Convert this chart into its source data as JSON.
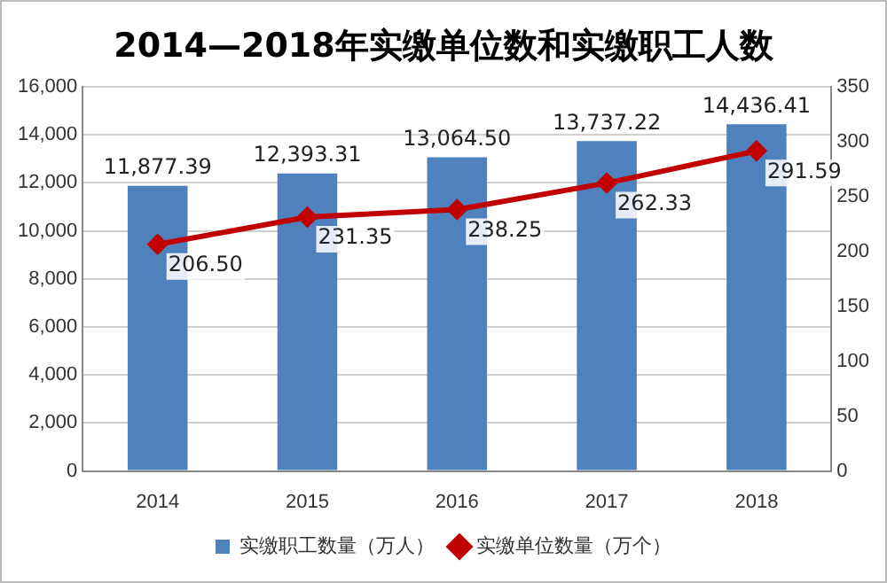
{
  "chart_data": {
    "type": "bar",
    "title": "2014—2018年实缴单位数和实缴职工人数",
    "categories": [
      "2014",
      "2015",
      "2016",
      "2017",
      "2018"
    ],
    "series": [
      {
        "name": "实缴职工数量（万人）",
        "color": "#4f81bd",
        "values": [
          11877.39,
          12393.31,
          13064.5,
          13737.22,
          14436.41
        ],
        "value_labels": [
          "11,877.39",
          "12,393.31",
          "13,064.50",
          "13,737.22",
          "14,436.41"
        ]
      },
      {
        "name": "实缴单位数量（万个）",
        "type": "line",
        "axis": "y2",
        "color": "#c00000",
        "marker": "diamond",
        "values": [
          206.5,
          231.35,
          238.25,
          262.33,
          291.59
        ],
        "value_labels": [
          "206.50",
          "231.35",
          "238.25",
          "262.33",
          "291.59"
        ]
      }
    ],
    "ylim": [
      0,
      16000
    ],
    "yticks": [
      {
        "value": 0,
        "label": "0"
      },
      {
        "value": 2000,
        "label": "2,000"
      },
      {
        "value": 4000,
        "label": "4,000"
      },
      {
        "value": 6000,
        "label": "6,000"
      },
      {
        "value": 8000,
        "label": "8,000"
      },
      {
        "value": 10000,
        "label": "10,000"
      },
      {
        "value": 12000,
        "label": "12,000"
      },
      {
        "value": 14000,
        "label": "14,000"
      },
      {
        "value": 16000,
        "label": "16,000"
      }
    ],
    "y2lim": [
      0,
      350
    ],
    "y2ticks": [
      0,
      50,
      100,
      150,
      200,
      250,
      300,
      350
    ],
    "grid": "y",
    "legend": "bottom"
  }
}
